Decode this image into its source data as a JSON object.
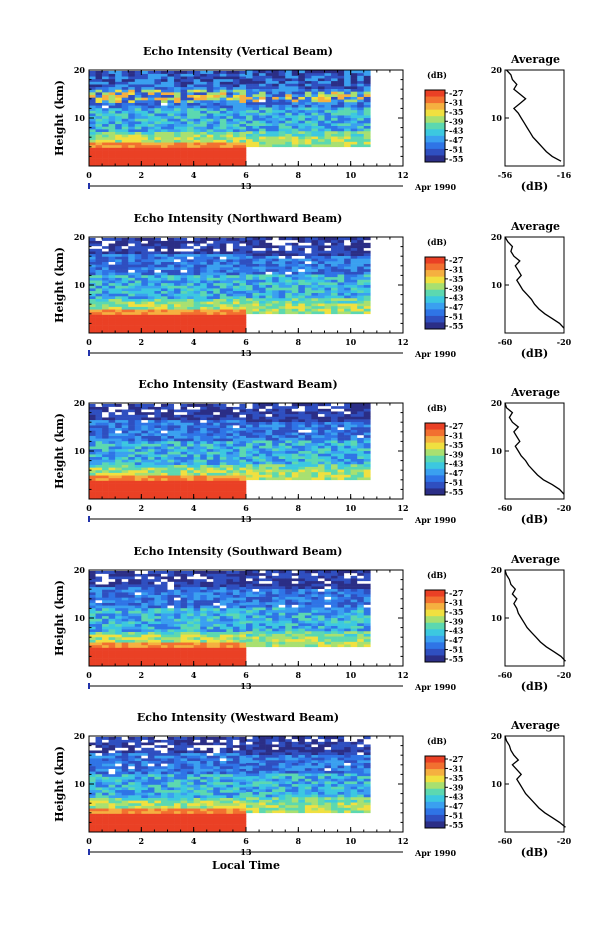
{
  "colors": {
    "scale": [
      "#2b2e86",
      "#2f4fc0",
      "#2f74e6",
      "#3aa0f0",
      "#3cc8e0",
      "#5cd8b0",
      "#a8e070",
      "#f0e040",
      "#f5b040",
      "#f27030",
      "#ea4025"
    ],
    "blank": "#ffffff"
  },
  "chart_data": [
    {
      "type": "heatmap",
      "title": "Echo Intensity (Vertical Beam)",
      "ylabel": "Height (km)",
      "xlim": [
        0,
        12
      ],
      "ylim": [
        0,
        20
      ],
      "xticks": [
        "0",
        "2",
        "4",
        "6",
        "8",
        "10",
        "12"
      ],
      "yticks": [
        "10",
        "20"
      ],
      "date_marker": "13",
      "date_label": "Apr 1990",
      "colorbar": {
        "label": "(dB)",
        "ticks": [
          "-27",
          "-31",
          "-35",
          "-39",
          "-43",
          "-47",
          "-51",
          "-55"
        ]
      },
      "profile": {
        "title": "Average",
        "xlabel": "(dB)",
        "xticks": [
          "-56",
          "-16"
        ],
        "yticks": [
          "10",
          "20"
        ],
        "xlim": [
          -56,
          -16
        ],
        "heights": [
          1,
          2,
          3,
          4,
          5,
          6,
          7,
          8,
          9,
          10,
          11,
          12,
          13,
          14,
          15,
          16,
          17,
          18,
          19,
          20
        ],
        "values": [
          -18,
          -24,
          -28,
          -31,
          -34,
          -37,
          -39,
          -41,
          -43,
          -45,
          -47,
          -50,
          -46,
          -42,
          -46,
          -50,
          -48,
          -51,
          -52,
          -55
        ]
      }
    },
    {
      "type": "heatmap",
      "title": "Echo Intensity (Northward Beam)",
      "ylabel": "Height (km)",
      "xlim": [
        0,
        12
      ],
      "ylim": [
        0,
        20
      ],
      "xticks": [
        "0",
        "2",
        "4",
        "6",
        "8",
        "10",
        "12"
      ],
      "yticks": [
        "10",
        "20"
      ],
      "date_marker": "13",
      "date_label": "Apr 1990",
      "colorbar": {
        "label": "(dB)",
        "ticks": [
          "-27",
          "-31",
          "-35",
          "-39",
          "-43",
          "-47",
          "-51",
          "-55"
        ]
      },
      "profile": {
        "title": "Average",
        "xlabel": "(dB)",
        "xticks": [
          "-60",
          "-20"
        ],
        "yticks": [
          "10",
          "20"
        ],
        "xlim": [
          -60,
          -20
        ],
        "heights": [
          1,
          2,
          3,
          4,
          5,
          6,
          7,
          8,
          9,
          10,
          11,
          12,
          13,
          14,
          15,
          16,
          17,
          18,
          19,
          20
        ],
        "values": [
          -20,
          -23,
          -28,
          -33,
          -37,
          -40,
          -42,
          -45,
          -48,
          -50,
          -52,
          -49,
          -51,
          -53,
          -50,
          -54,
          -56,
          -55,
          -58,
          -60
        ]
      }
    },
    {
      "type": "heatmap",
      "title": "Echo Intensity (Eastward Beam)",
      "ylabel": "Height (km)",
      "xlim": [
        0,
        12
      ],
      "ylim": [
        0,
        20
      ],
      "xticks": [
        "0",
        "2",
        "4",
        "6",
        "8",
        "10",
        "12"
      ],
      "yticks": [
        "10",
        "20"
      ],
      "date_marker": "13",
      "date_label": "Apr 1990",
      "colorbar": {
        "label": "(dB)",
        "ticks": [
          "-27",
          "-31",
          "-35",
          "-39",
          "-43",
          "-47",
          "-51",
          "-55"
        ]
      },
      "profile": {
        "title": "Average",
        "xlabel": "(dB)",
        "xticks": [
          "-60",
          "-20"
        ],
        "yticks": [
          "10",
          "20"
        ],
        "xlim": [
          -60,
          -20
        ],
        "heights": [
          1,
          2,
          3,
          4,
          5,
          6,
          7,
          8,
          9,
          10,
          11,
          12,
          13,
          14,
          15,
          16,
          17,
          18,
          19,
          20
        ],
        "values": [
          -20,
          -23,
          -28,
          -34,
          -38,
          -41,
          -44,
          -46,
          -49,
          -51,
          -53,
          -50,
          -52,
          -54,
          -51,
          -55,
          -57,
          -55,
          -59,
          -60
        ]
      }
    },
    {
      "type": "heatmap",
      "title": "Echo Intensity (Southward Beam)",
      "ylabel": "Height (km)",
      "xlim": [
        0,
        12
      ],
      "ylim": [
        0,
        20
      ],
      "xticks": [
        "0",
        "2",
        "4",
        "6",
        "8",
        "10",
        "12"
      ],
      "yticks": [
        "10",
        "20"
      ],
      "date_marker": "13",
      "date_label": "Apr 1990",
      "colorbar": {
        "label": "(dB)",
        "ticks": [
          "-27",
          "-31",
          "-35",
          "-39",
          "-43",
          "-47",
          "-51",
          "-55"
        ]
      },
      "profile": {
        "title": "Average",
        "xlabel": "(dB)",
        "xticks": [
          "-60",
          "-20"
        ],
        "yticks": [
          "10",
          "20"
        ],
        "xlim": [
          -60,
          -20
        ],
        "heights": [
          1,
          2,
          3,
          4,
          5,
          6,
          7,
          8,
          9,
          10,
          11,
          12,
          13,
          14,
          15,
          16,
          17,
          18,
          19,
          20
        ],
        "values": [
          -19,
          -22,
          -27,
          -32,
          -36,
          -39,
          -42,
          -45,
          -47,
          -49,
          -51,
          -52,
          -54,
          -52,
          -55,
          -53,
          -56,
          -57,
          -59,
          -60
        ]
      }
    },
    {
      "type": "heatmap",
      "title": "Echo Intensity (Westward Beam)",
      "ylabel": "Height (km)",
      "xlim": [
        0,
        12
      ],
      "ylim": [
        0,
        20
      ],
      "xticks": [
        "0",
        "2",
        "4",
        "6",
        "8",
        "10",
        "12"
      ],
      "yticks": [
        "10",
        "20"
      ],
      "date_marker": "13",
      "date_label": "Apr 1990",
      "xlabel": "Local Time",
      "colorbar": {
        "label": "(dB)",
        "ticks": [
          "-27",
          "-31",
          "-35",
          "-39",
          "-43",
          "-47",
          "-51",
          "-55"
        ]
      },
      "profile": {
        "title": "Average",
        "xlabel": "(dB)",
        "xticks": [
          "-60",
          "-20"
        ],
        "yticks": [
          "10",
          "20"
        ],
        "xlim": [
          -60,
          -20
        ],
        "heights": [
          1,
          2,
          3,
          4,
          5,
          6,
          7,
          8,
          9,
          10,
          11,
          12,
          13,
          14,
          15,
          16,
          17,
          18,
          19,
          20
        ],
        "values": [
          -19,
          -23,
          -28,
          -33,
          -37,
          -40,
          -43,
          -46,
          -48,
          -50,
          -52,
          -49,
          -52,
          -55,
          -51,
          -54,
          -56,
          -57,
          -59,
          -60
        ]
      }
    }
  ]
}
